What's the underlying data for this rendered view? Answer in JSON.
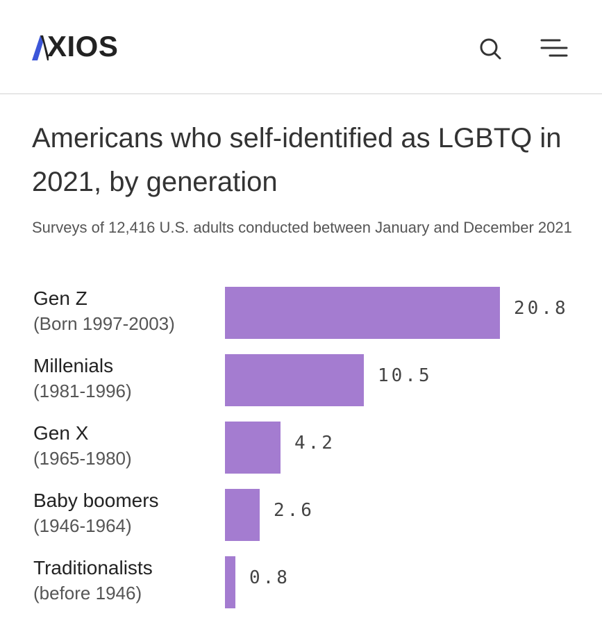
{
  "header": {
    "logo_text": "XIOS",
    "logo_mark_icon": "axios-a-mark-icon",
    "search_icon": "search-icon",
    "menu_icon": "menu-icon",
    "accent_color": "#3c56d9"
  },
  "bar_color": "#a47cd0",
  "chart_data": {
    "type": "bar",
    "orientation": "horizontal",
    "title": "Americans who self-identified as LGBTQ in 2021, by generation",
    "subtitle": "Surveys of 12,416 U.S. adults conducted between January and December 2021",
    "categories": [
      "Gen Z",
      "Millenials",
      "Gen X",
      "Baby boomers",
      "Traditionalists"
    ],
    "category_sublabels": [
      "(Born 1997-2003)",
      "(1981-1996)",
      "(1965-1980)",
      "(1946-1964)",
      "(before 1946)"
    ],
    "values": [
      20.8,
      10.5,
      4.2,
      2.6,
      0.8
    ],
    "value_labels": [
      "20.8",
      "10.5",
      "4.2",
      "2.6",
      "0.8"
    ],
    "xlim": [
      0,
      20.8
    ],
    "xlabel": "",
    "ylabel": "",
    "grid": false
  }
}
